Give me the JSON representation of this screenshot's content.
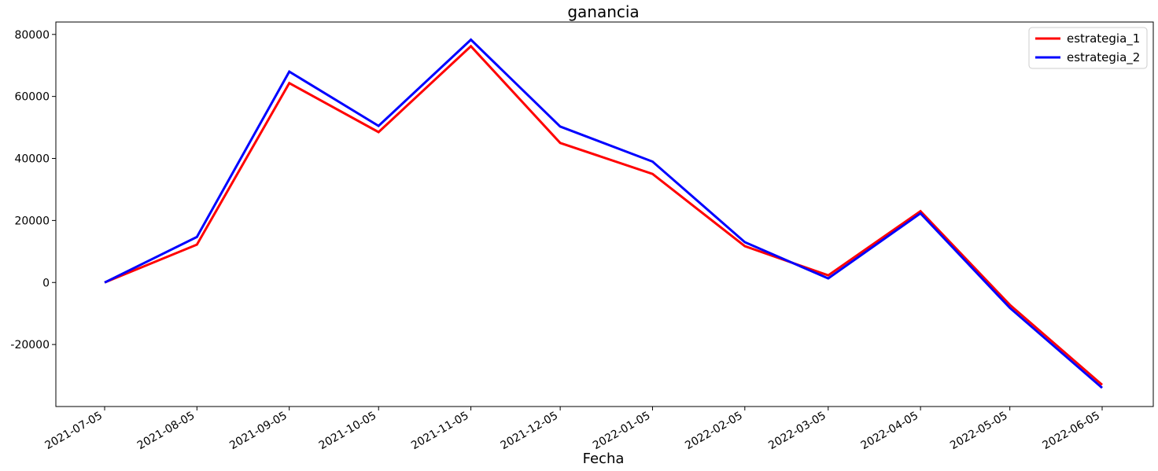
{
  "chart_data": {
    "type": "line",
    "title": "ganancia",
    "xlabel": "Fecha",
    "ylabel": "",
    "x": [
      "2021-07-05",
      "2021-08-05",
      "2021-09-05",
      "2021-10-05",
      "2021-11-05",
      "2021-12-05",
      "2022-01-05",
      "2022-02-05",
      "2022-03-05",
      "2022-04-05",
      "2022-05-05",
      "2022-06-05"
    ],
    "ylim": [
      -40000,
      84000
    ],
    "yticks": [
      -20000,
      0,
      20000,
      40000,
      60000,
      80000
    ],
    "series": [
      {
        "name": "estrategia_1",
        "color": "#ff0000",
        "values": [
          0,
          12200,
          64300,
          48500,
          76200,
          45000,
          35000,
          11700,
          2300,
          23000,
          -7200,
          -33000
        ]
      },
      {
        "name": "estrategia_2",
        "color": "#0000ff",
        "values": [
          0,
          14700,
          68000,
          50500,
          78300,
          50300,
          39000,
          13000,
          1300,
          22300,
          -8200,
          -34000
        ]
      }
    ],
    "legend_position": "top-right",
    "grid": false
  }
}
